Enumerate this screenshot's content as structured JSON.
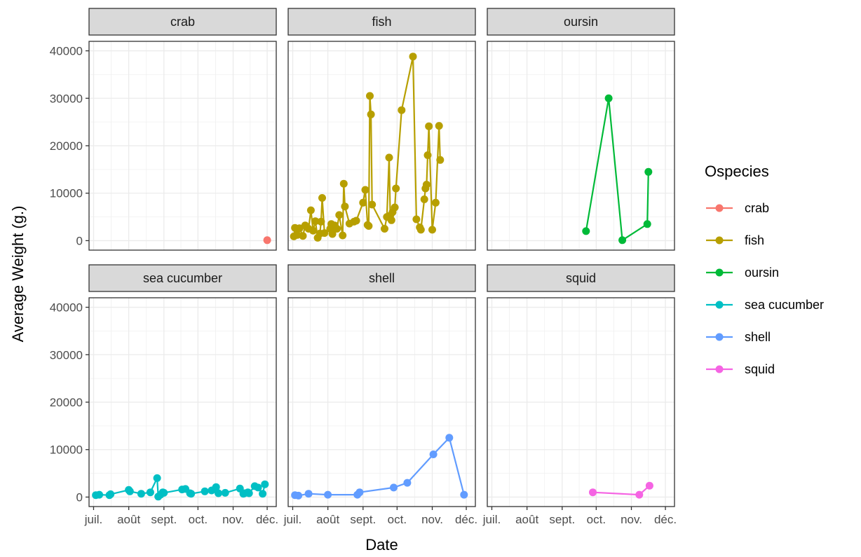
{
  "chart_data": {
    "type": "line",
    "facet_variable": "Ospecies",
    "xlabel": "Date",
    "ylabel": "Average Weight (g.)",
    "x_ticks": [
      {
        "value": "2021-07-01",
        "label": "juil."
      },
      {
        "value": "2021-08-01",
        "label": "août"
      },
      {
        "value": "2021-09-01",
        "label": "sept."
      },
      {
        "value": "2021-10-01",
        "label": "oct."
      },
      {
        "value": "2021-11-01",
        "label": "nov."
      },
      {
        "value": "2021-12-01",
        "label": "déc."
      }
    ],
    "xlim": [
      "2021-06-27",
      "2021-12-09"
    ],
    "y_ticks": [
      0,
      10000,
      20000,
      30000,
      40000
    ],
    "ylim": [
      -2000,
      42000
    ],
    "grid": true,
    "legend": {
      "title": "Ospecies",
      "position": "right"
    },
    "series": [
      {
        "name": "crab",
        "color": "#F8766D",
        "points": [
          [
            "2021-12-01",
            100
          ]
        ]
      },
      {
        "name": "fish",
        "color": "#B79F00",
        "points": [
          [
            "2021-07-02",
            900
          ],
          [
            "2021-07-03",
            2700
          ],
          [
            "2021-07-05",
            1200
          ],
          [
            "2021-07-07",
            2600
          ],
          [
            "2021-07-10",
            1000
          ],
          [
            "2021-07-12",
            3200
          ],
          [
            "2021-07-15",
            2500
          ],
          [
            "2021-07-17",
            6400
          ],
          [
            "2021-07-19",
            2100
          ],
          [
            "2021-07-21",
            4100
          ],
          [
            "2021-07-23",
            600
          ],
          [
            "2021-07-25",
            1500
          ],
          [
            "2021-07-26",
            4000
          ],
          [
            "2021-07-27",
            9000
          ],
          [
            "2021-07-29",
            1600
          ],
          [
            "2021-08-03",
            2500
          ],
          [
            "2021-08-04",
            3500
          ],
          [
            "2021-08-05",
            1400
          ],
          [
            "2021-08-07",
            3200
          ],
          [
            "2021-08-09",
            2500
          ],
          [
            "2021-08-11",
            5400
          ],
          [
            "2021-08-14",
            1100
          ],
          [
            "2021-08-15",
            12000
          ],
          [
            "2021-08-16",
            7200
          ],
          [
            "2021-08-20",
            3600
          ],
          [
            "2021-08-24",
            4000
          ],
          [
            "2021-08-26",
            4200
          ],
          [
            "2021-09-01",
            8000
          ],
          [
            "2021-09-03",
            10700
          ],
          [
            "2021-09-05",
            3300
          ],
          [
            "2021-09-06",
            3100
          ],
          [
            "2021-09-07",
            30500
          ],
          [
            "2021-09-08",
            26600
          ],
          [
            "2021-09-09",
            7600
          ],
          [
            "2021-09-20",
            2500
          ],
          [
            "2021-09-22",
            5000
          ],
          [
            "2021-09-24",
            17500
          ],
          [
            "2021-09-25",
            5300
          ],
          [
            "2021-09-26",
            4300
          ],
          [
            "2021-09-27",
            6000
          ],
          [
            "2021-09-29",
            7000
          ],
          [
            "2021-09-30",
            11000
          ],
          [
            "2021-10-05",
            27500
          ],
          [
            "2021-10-15",
            38800
          ],
          [
            "2021-10-18",
            4500
          ],
          [
            "2021-10-21",
            2800
          ],
          [
            "2021-10-22",
            2300
          ],
          [
            "2021-10-25",
            8700
          ],
          [
            "2021-10-26",
            11000
          ],
          [
            "2021-10-27",
            11800
          ],
          [
            "2021-10-28",
            18000
          ],
          [
            "2021-10-29",
            24100
          ],
          [
            "2021-11-01",
            2300
          ],
          [
            "2021-11-04",
            8000
          ],
          [
            "2021-11-07",
            24200
          ],
          [
            "2021-11-08",
            17000
          ]
        ]
      },
      {
        "name": "oursin",
        "color": "#00BA38",
        "points": [
          [
            "2021-09-22",
            2000
          ],
          [
            "2021-10-12",
            30000
          ],
          [
            "2021-10-24",
            100
          ],
          [
            "2021-11-15",
            3500
          ],
          [
            "2021-11-16",
            14500
          ]
        ]
      },
      {
        "name": "sea cucumber",
        "color": "#00BFC4",
        "points": [
          [
            "2021-07-03",
            400
          ],
          [
            "2021-07-06",
            500
          ],
          [
            "2021-07-15",
            400
          ],
          [
            "2021-07-16",
            600
          ],
          [
            "2021-08-01",
            1500
          ],
          [
            "2021-08-02",
            1200
          ],
          [
            "2021-08-12",
            700
          ],
          [
            "2021-08-20",
            1000
          ],
          [
            "2021-08-26",
            4000
          ],
          [
            "2021-08-27",
            100
          ],
          [
            "2021-08-29",
            500
          ],
          [
            "2021-08-31",
            1000
          ],
          [
            "2021-09-01",
            900
          ],
          [
            "2021-09-17",
            1600
          ],
          [
            "2021-09-20",
            1700
          ],
          [
            "2021-09-24",
            800
          ],
          [
            "2021-09-25",
            700
          ],
          [
            "2021-10-07",
            1200
          ],
          [
            "2021-10-13",
            1400
          ],
          [
            "2021-10-16",
            1700
          ],
          [
            "2021-10-17",
            2100
          ],
          [
            "2021-10-19",
            800
          ],
          [
            "2021-10-25",
            900
          ],
          [
            "2021-11-07",
            1800
          ],
          [
            "2021-11-10",
            700
          ],
          [
            "2021-11-11",
            800
          ],
          [
            "2021-11-14",
            1000
          ],
          [
            "2021-11-15",
            800
          ],
          [
            "2021-11-20",
            2300
          ],
          [
            "2021-11-23",
            2000
          ],
          [
            "2021-11-27",
            700
          ],
          [
            "2021-11-29",
            2700
          ]
        ]
      },
      {
        "name": "shell",
        "color": "#619CFF",
        "points": [
          [
            "2021-07-03",
            400
          ],
          [
            "2021-07-06",
            300
          ],
          [
            "2021-07-15",
            700
          ],
          [
            "2021-08-01",
            500
          ],
          [
            "2021-08-27",
            500
          ],
          [
            "2021-08-29",
            1000
          ],
          [
            "2021-09-28",
            2000
          ],
          [
            "2021-10-10",
            3000
          ],
          [
            "2021-11-02",
            9000
          ],
          [
            "2021-11-16",
            12500
          ],
          [
            "2021-11-29",
            500
          ]
        ]
      },
      {
        "name": "squid",
        "color": "#F564E3",
        "points": [
          [
            "2021-09-28",
            1000
          ],
          [
            "2021-11-08",
            500
          ],
          [
            "2021-11-17",
            2400
          ]
        ]
      }
    ]
  }
}
